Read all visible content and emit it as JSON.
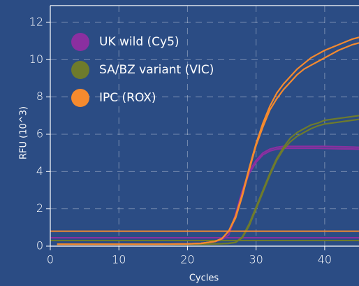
{
  "chart_data": {
    "type": "line",
    "xlabel": "Cycles",
    "ylabel": "RFU (10^3)",
    "xlim": [
      0,
      45
    ],
    "ylim": [
      0,
      12.9
    ],
    "xticks": [
      0,
      10,
      20,
      30,
      40
    ],
    "yticks": [
      0,
      2,
      4,
      6,
      8,
      10,
      12
    ],
    "grid": true,
    "legend": "upper left",
    "x": [
      1,
      5,
      10,
      15,
      20,
      22,
      24,
      25,
      26,
      27,
      28,
      29,
      30,
      31,
      32,
      33,
      34,
      35,
      36,
      37,
      38,
      39,
      40,
      42,
      44,
      45
    ],
    "series": [
      {
        "name": "UK wild (Cy5)",
        "color": "#8b2fa0",
        "threshold": 0.45,
        "values": [
          [
            0.1,
            0.1,
            0.1,
            0.1,
            0.12,
            0.15,
            0.25,
            0.35,
            0.6,
            1.7,
            3.0,
            4.0,
            4.6,
            5.0,
            5.2,
            5.3,
            5.35,
            5.35,
            5.35,
            5.35,
            5.35,
            5.35,
            5.35,
            5.33,
            5.31,
            5.3
          ],
          [
            0.1,
            0.1,
            0.1,
            0.1,
            0.12,
            0.15,
            0.25,
            0.35,
            0.6,
            1.6,
            2.9,
            3.9,
            4.5,
            4.9,
            5.1,
            5.2,
            5.25,
            5.25,
            5.25,
            5.25,
            5.25,
            5.25,
            5.24,
            5.22,
            5.21,
            5.2
          ]
        ]
      },
      {
        "name": "SA/BZ variant (VIC)",
        "color": "#6e7b2c",
        "threshold": 0.3,
        "values": [
          [
            0.1,
            0.1,
            0.1,
            0.1,
            0.1,
            0.1,
            0.12,
            0.13,
            0.15,
            0.2,
            0.5,
            1.2,
            2.1,
            3.0,
            3.9,
            4.7,
            5.3,
            5.8,
            6.1,
            6.3,
            6.5,
            6.6,
            6.75,
            6.85,
            6.95,
            7.0
          ],
          [
            0.1,
            0.1,
            0.1,
            0.1,
            0.1,
            0.1,
            0.12,
            0.13,
            0.15,
            0.2,
            0.45,
            1.1,
            2.0,
            2.9,
            3.8,
            4.6,
            5.2,
            5.6,
            5.9,
            6.1,
            6.3,
            6.45,
            6.55,
            6.65,
            6.75,
            6.8
          ]
        ]
      },
      {
        "name": "IPC (ROX)",
        "color": "#f58a2e",
        "threshold": 0.8,
        "values": [
          [
            0.1,
            0.1,
            0.1,
            0.1,
            0.12,
            0.15,
            0.25,
            0.4,
            0.8,
            1.6,
            2.8,
            4.2,
            5.5,
            6.6,
            7.5,
            8.2,
            8.7,
            9.1,
            9.5,
            9.8,
            10.1,
            10.3,
            10.5,
            10.8,
            11.1,
            11.2
          ],
          [
            0.1,
            0.1,
            0.1,
            0.1,
            0.12,
            0.15,
            0.25,
            0.4,
            0.8,
            1.5,
            2.7,
            4.1,
            5.4,
            6.4,
            7.3,
            7.9,
            8.4,
            8.8,
            9.2,
            9.5,
            9.7,
            9.9,
            10.1,
            10.5,
            10.8,
            10.9
          ]
        ]
      }
    ]
  }
}
